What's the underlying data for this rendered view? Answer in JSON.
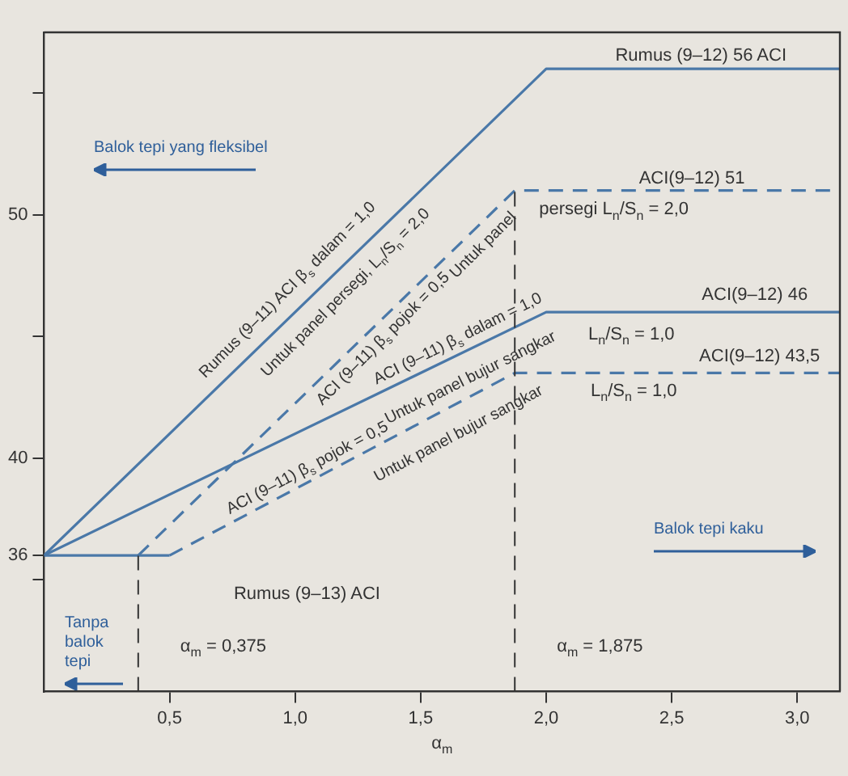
{
  "chart_data": {
    "type": "line",
    "xlabel": "α$_{m}$",
    "xlim": [
      0,
      3.17
    ],
    "ylim": [
      30.4,
      57.5
    ],
    "xticks": [
      {
        "value": 0.5,
        "label": "0,5"
      },
      {
        "value": 1,
        "label": "1,0"
      },
      {
        "value": 1.5,
        "label": "1,5"
      },
      {
        "value": 2,
        "label": "2,0"
      },
      {
        "value": 2.5,
        "label": "2,5"
      },
      {
        "value": 3,
        "label": "3,0"
      }
    ],
    "yticks": [
      {
        "value": 35,
        "label": null
      },
      36,
      40,
      {
        "value": 45,
        "label": null
      },
      50,
      {
        "value": 55,
        "label": null
      }
    ],
    "grid": false,
    "legend": false,
    "marker": "none",
    "series": [
      {
        "color": "#4a78a8",
        "line_style": "solid",
        "x": [
          0,
          2,
          3.17
        ],
        "values": [
          36,
          56,
          56
        ]
      },
      {
        "color": "#4a78a8",
        "line_style": "dashed",
        "x": [
          0.375,
          1.875,
          3.17
        ],
        "values": [
          36,
          51,
          51
        ]
      },
      {
        "color": "#4a78a8",
        "line_style": "solid",
        "x": [
          0,
          2,
          3.17
        ],
        "values": [
          36,
          46,
          46
        ]
      },
      {
        "color": "#4a78a8",
        "line_style": "solid",
        "x": [
          0,
          0.5
        ],
        "values": [
          36,
          36
        ]
      },
      {
        "color": "#4a78a8",
        "line_style": "dashed",
        "x": [
          0.5,
          1.875,
          3.17
        ],
        "values": [
          36,
          43.5,
          43.5
        ]
      }
    ],
    "ref_lines": [
      {
        "axis": "x",
        "value": 0.375,
        "label": "α$_{m}$ = 0,375",
        "line_style": "dashed",
        "color": "#333333"
      },
      {
        "axis": "x",
        "value": 1.875,
        "label": "α$_{m}$ = 1,875",
        "line_style": "dashed",
        "color": "#333333"
      }
    ],
    "annotations": [
      "Rumus (9–12) 56 ACI",
      "ACI(9–12) 51",
      "persegi L$_{n}$/S$_{n}$ = 2,0",
      "ACI(9–12) 46",
      "L$_{n}$/S$_{n}$ = 1,0",
      "ACI(9–12) 43,5",
      "L$_{n}$/S$_{n}$ = 1,0",
      "Rumus (9–11) ACI β$_{s}$ dalam = 1,0",
      "Untuk panel persegi, L$_{n}$/S$_{n}$ = 2,0",
      "ACI (9–11) β$_{s}$ pojok = 0,5",
      "Untuk panel",
      "ACI (9–11) β$_{s}$ dalam = 1,0",
      "Untuk panel bujur sangkar",
      "ACI (9–11) β$_{s}$ pojok = 0,5",
      "Untuk panel bujur sangkar",
      "Rumus (9–13) ACI",
      "Balok tepi yang fleksibel",
      "Balok tepi kaku",
      "Tanpa balok tepi"
    ]
  }
}
